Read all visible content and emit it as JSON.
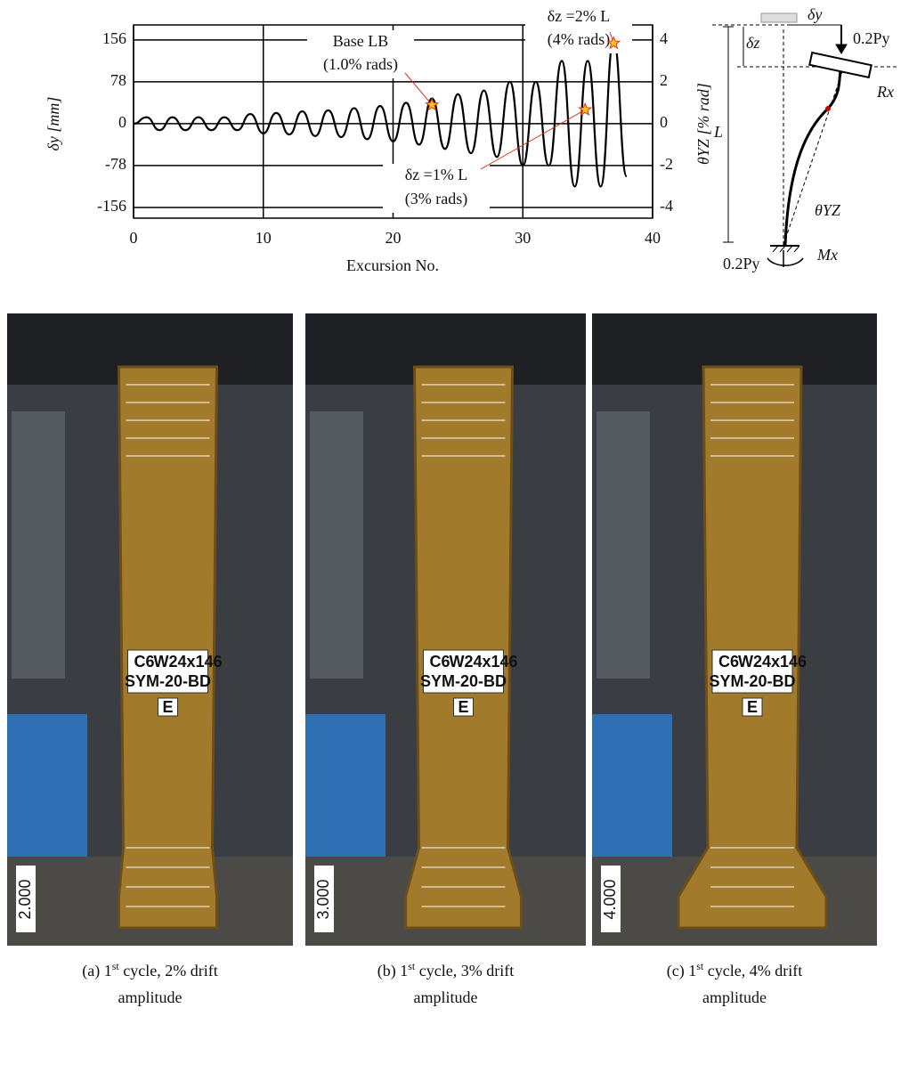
{
  "chart_data": {
    "type": "line",
    "x_label": "Excursion No.",
    "y_label": "δy [mm]",
    "y2_label": "θYZ [% rad]",
    "x": [
      0,
      1,
      2,
      3,
      4,
      5,
      6,
      7,
      8,
      9,
      10,
      11,
      12,
      13,
      14,
      15,
      16,
      17,
      18,
      19,
      20,
      21,
      22,
      23,
      24,
      25,
      26,
      27,
      28,
      29,
      30,
      31,
      32,
      33,
      34,
      35,
      36,
      37,
      38
    ],
    "series": [
      {
        "color": "#000000",
        "values": [
          0,
          12,
          -12,
          12,
          -12,
          12,
          -12,
          12,
          -12,
          18,
          -18,
          20,
          -20,
          23,
          -23,
          25,
          -25,
          29,
          -29,
          33,
          -33,
          39,
          -39,
          47,
          -47,
          55,
          -55,
          62,
          -62,
          78,
          -78,
          78,
          -78,
          117,
          -117,
          117,
          -117,
          156,
          -98
        ]
      }
    ],
    "xlim": [
      0,
      40
    ],
    "xticks": [
      0,
      10,
      20,
      30,
      40
    ],
    "ylim": [
      -176,
      184
    ],
    "yticks": [
      -156,
      -78,
      0,
      78,
      156
    ],
    "y2lim": [
      -4.51,
      4.72
    ],
    "y2ticks": [
      -4,
      -2,
      0,
      2,
      4
    ],
    "grid": true,
    "annotations": [
      {
        "text": "Base LB",
        "text2": "(1.0% rads)",
        "x": 23,
        "y": 35
      },
      {
        "text": "δz =2% L",
        "text2": "(4% rads)",
        "x": 37,
        "y": 150
      },
      {
        "text": "δz =1% L",
        "text2": "(3% rads)",
        "x": 34.8,
        "y": 26
      }
    ]
  },
  "diagram": {
    "labels": [
      "δy",
      "0.2Py",
      "δz",
      "Rx",
      "L",
      "θYZ",
      "0.2Py",
      "Mx"
    ]
  },
  "photos": [
    {
      "tag1": "C6",
      "tag2": "W24x146",
      "tag3": "SYM-20-BD",
      "face": "E",
      "sign": "2.000",
      "caption": {
        "prefix": "(a) 1",
        "sup": "st",
        "rest": " cycle, 2% drift",
        "line2": "amplitude"
      }
    },
    {
      "tag1": "C6",
      "tag2": "W24x146",
      "tag3": "SYM-20-BD",
      "face": "E",
      "sign": "3.000",
      "caption": {
        "prefix": "(b) 1",
        "sup": "st",
        "rest": " cycle, 3% drift",
        "line2": "amplitude"
      }
    },
    {
      "tag1": "C6",
      "tag2": "W24x146",
      "tag3": "SYM-20-BD",
      "face": "E",
      "sign": "4.000",
      "caption": {
        "prefix": "(c) 1",
        "sup": "st",
        "rest": " cycle, 4% drift",
        "line2": "amplitude"
      }
    }
  ]
}
